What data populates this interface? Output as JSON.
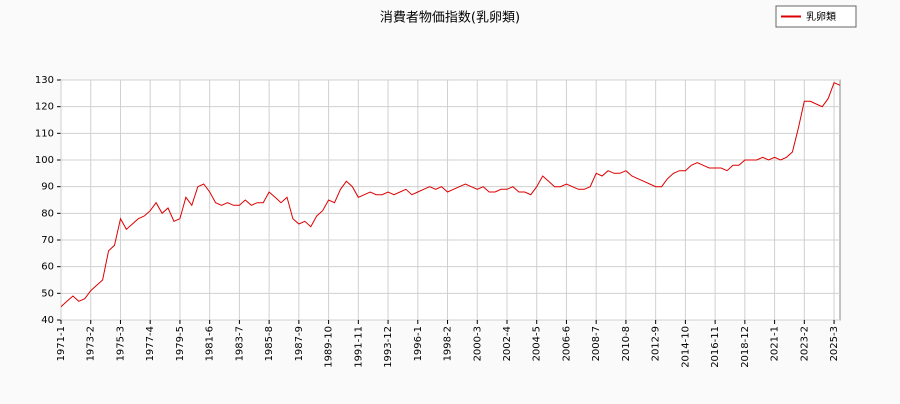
{
  "chart_data": {
    "type": "line",
    "title": "消費者物価指数(乳卵類)",
    "categories": [
      "1971-1",
      null,
      null,
      null,
      null,
      "1973-2",
      null,
      null,
      null,
      null,
      "1975-3",
      null,
      null,
      null,
      null,
      "1977-4",
      null,
      null,
      null,
      null,
      "1979-5",
      null,
      null,
      null,
      null,
      "1981-6",
      null,
      null,
      null,
      null,
      "1983-7",
      null,
      null,
      null,
      null,
      "1985-8",
      null,
      null,
      null,
      null,
      "1987-9",
      null,
      null,
      null,
      null,
      "1989-10",
      null,
      null,
      null,
      null,
      "1991-11",
      null,
      null,
      null,
      null,
      "1993-12",
      null,
      null,
      null,
      null,
      "1996-1",
      null,
      null,
      null,
      null,
      "1998-2",
      null,
      null,
      null,
      null,
      "2000-3",
      null,
      null,
      null,
      null,
      "2002-4",
      null,
      null,
      null,
      null,
      "2004-5",
      null,
      null,
      null,
      null,
      "2006-6",
      null,
      null,
      null,
      null,
      "2008-7",
      null,
      null,
      null,
      null,
      "2010-8",
      null,
      null,
      null,
      null,
      "2012-9",
      null,
      null,
      null,
      null,
      "2014-10",
      null,
      null,
      null,
      null,
      "2016-11",
      null,
      null,
      null,
      null,
      "2018-12",
      null,
      null,
      null,
      null,
      "2021-1",
      null,
      null,
      null,
      null,
      "2023-2",
      null,
      null,
      null,
      null,
      "2025-3",
      null
    ],
    "series": [
      {
        "name": "乳卵類",
        "color": "#dd0000",
        "values": [
          45,
          47,
          49,
          47,
          48,
          51,
          53,
          55,
          66,
          68,
          78,
          74,
          76,
          78,
          79,
          81,
          84,
          80,
          82,
          77,
          78,
          86,
          83,
          90,
          91,
          88,
          84,
          83,
          84,
          83,
          83,
          85,
          83,
          84,
          84,
          88,
          86,
          84,
          86,
          78,
          76,
          77,
          75,
          79,
          81,
          85,
          84,
          89,
          92,
          90,
          86,
          87,
          88,
          87,
          87,
          88,
          87,
          88,
          89,
          87,
          88,
          89,
          90,
          89,
          90,
          88,
          89,
          90,
          91,
          90,
          89,
          90,
          88,
          88,
          89,
          89,
          90,
          88,
          88,
          87,
          90,
          94,
          92,
          90,
          90,
          91,
          90,
          89,
          89,
          90,
          95,
          94,
          96,
          95,
          95,
          96,
          94,
          93,
          92,
          91,
          90,
          90,
          93,
          95,
          96,
          96,
          98,
          99,
          98,
          97,
          97,
          97,
          96,
          98,
          98,
          100,
          100,
          100,
          101,
          100,
          101,
          100,
          101,
          103,
          112,
          122,
          122,
          121,
          120,
          123,
          129,
          128
        ]
      }
    ],
    "ylim": [
      40,
      130
    ],
    "yticks": [
      40,
      50,
      60,
      70,
      80,
      90,
      100,
      110,
      120,
      130
    ],
    "grid": true,
    "legend": "top-right"
  }
}
